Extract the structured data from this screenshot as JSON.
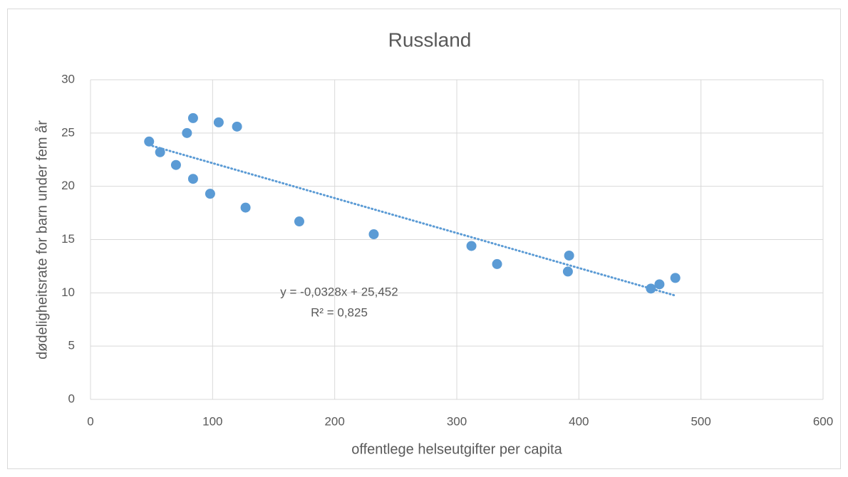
{
  "chart_data": {
    "type": "scatter",
    "title": "Russland",
    "x_label": "offentlege helseutgifter per capita",
    "y_label": "dødeligheitsrate for barn under fem år",
    "series": [
      {
        "color": "#5b9bd5",
        "x": [
          48,
          57,
          70,
          79,
          84,
          84,
          98,
          105,
          120,
          127,
          171,
          232,
          312,
          333,
          391,
          392,
          459,
          466,
          479
        ],
        "values": [
          24.2,
          23.2,
          22.0,
          25.0,
          26.4,
          20.7,
          19.3,
          26.0,
          25.6,
          18.0,
          16.7,
          15.5,
          14.4,
          12.7,
          12.0,
          13.5,
          10.4,
          10.8,
          11.4
        ]
      }
    ],
    "trendline": {
      "slope": -0.0328,
      "intercept": 25.452,
      "equation": "y = -0,0328x + 25,452",
      "r2": "R² = 0,825"
    },
    "xlim": [
      0,
      600
    ],
    "xticks": [
      0,
      100,
      200,
      300,
      400,
      500,
      600
    ],
    "ylim": [
      0,
      30
    ],
    "yticks": [
      0,
      5,
      10,
      15,
      20,
      25,
      30
    ],
    "grid": true
  }
}
